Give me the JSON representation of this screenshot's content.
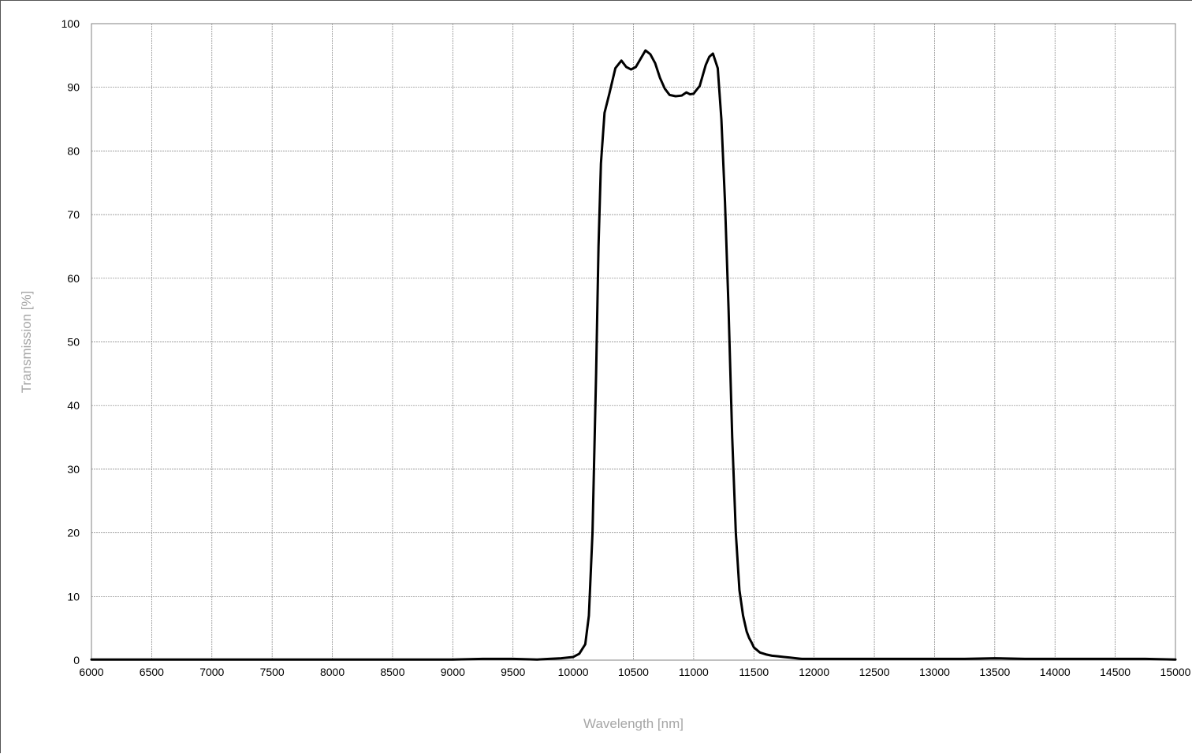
{
  "chart_data": {
    "type": "line",
    "title": "",
    "xlabel": "Wavelength [nm]",
    "ylabel": "Transmission [%]",
    "xlim": [
      6000,
      15000
    ],
    "ylim": [
      0,
      100
    ],
    "x_ticks": [
      6000,
      6500,
      7000,
      7500,
      8000,
      8500,
      9000,
      9500,
      10000,
      10500,
      11000,
      11500,
      12000,
      12500,
      13000,
      13500,
      14000,
      14500,
      15000
    ],
    "y_ticks": [
      0,
      10,
      20,
      30,
      40,
      50,
      60,
      70,
      80,
      90,
      100
    ],
    "x_tick_labels": [
      "6000",
      "6500",
      "7000",
      "7500",
      "8000",
      "8500",
      "9000",
      "9500",
      "10000",
      "10500",
      "11000",
      "11500",
      "12000",
      "12500",
      "13000",
      "13500",
      "14000",
      "14500",
      "15000"
    ],
    "y_tick_labels": [
      "0",
      "10",
      "20",
      "30",
      "40",
      "50",
      "60",
      "70",
      "80",
      "90",
      "100"
    ],
    "grid": true,
    "legend": "none",
    "line_color": "#000000",
    "grid_color": "#7f7f7f",
    "axis_title_color": "#a6a6a6",
    "series": [
      {
        "x": [
          6000,
          6250,
          6500,
          6750,
          7000,
          7250,
          7500,
          7750,
          8000,
          8250,
          8500,
          8750,
          9000,
          9250,
          9500,
          9700,
          9800,
          9900,
          10000,
          10050,
          10100,
          10130,
          10160,
          10190,
          10210,
          10230,
          10260,
          10300,
          10350,
          10400,
          10440,
          10480,
          10500,
          10520,
          10560,
          10600,
          10640,
          10680,
          10720,
          10760,
          10800,
          10850,
          10900,
          10940,
          10970,
          11000,
          11020,
          11050,
          11100,
          11130,
          11160,
          11200,
          11230,
          11260,
          11290,
          11320,
          11350,
          11380,
          11410,
          11440,
          11460,
          11480,
          11500,
          11550,
          11600,
          11650,
          11700,
          11750,
          11800,
          11850,
          11900,
          12000,
          12200,
          12500,
          12750,
          13000,
          13250,
          13500,
          13750,
          14000,
          14250,
          14500,
          14750,
          15000
        ],
        "y": [
          0.1,
          0.1,
          0.1,
          0.1,
          0.1,
          0.1,
          0.1,
          0.1,
          0.1,
          0.1,
          0.1,
          0.1,
          0.1,
          0.2,
          0.2,
          0.1,
          0.2,
          0.3,
          0.5,
          1.0,
          2.5,
          7.0,
          20.0,
          45.0,
          65.0,
          78.0,
          86.0,
          89.0,
          93.0,
          94.2,
          93.2,
          92.8,
          93.0,
          93.2,
          94.5,
          95.8,
          95.2,
          93.8,
          91.5,
          89.8,
          88.8,
          88.6,
          88.7,
          89.2,
          88.9,
          89.0,
          89.5,
          90.2,
          93.5,
          94.8,
          95.3,
          93.0,
          85.0,
          72.0,
          55.0,
          35.0,
          20.0,
          11.0,
          7.0,
          4.5,
          3.5,
          2.8,
          2.0,
          1.2,
          0.9,
          0.7,
          0.6,
          0.5,
          0.4,
          0.3,
          0.2,
          0.2,
          0.2,
          0.2,
          0.2,
          0.2,
          0.2,
          0.3,
          0.2,
          0.2,
          0.2,
          0.2,
          0.2,
          0.1
        ]
      }
    ]
  }
}
